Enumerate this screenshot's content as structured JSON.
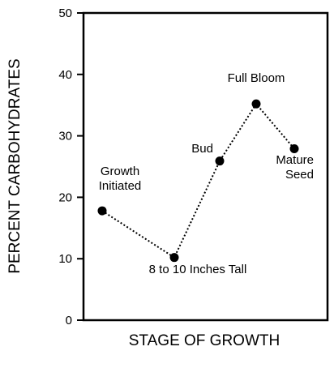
{
  "chart_data": {
    "type": "line",
    "title": "",
    "xlabel": "STAGE OF GROWTH",
    "ylabel": "PERCENT CARBOHYDRATES",
    "ylim": [
      0,
      50
    ],
    "yticks": [
      "0",
      "10",
      "20",
      "30",
      "40",
      "50"
    ],
    "grid": false,
    "legend": "none",
    "line_style": "dotted",
    "colors": {
      "line": "#000000",
      "marker": "#000000",
      "axis": "#000000"
    },
    "series": [
      {
        "points": [
          {
            "stage": "Growth Initiated",
            "label_lines": [
              "Growth",
              "Initiated"
            ],
            "value": 17.8
          },
          {
            "stage": "8 to 10 Inches Tall",
            "label_lines": [
              "8 to 10 Inches Tall"
            ],
            "value": 10.2
          },
          {
            "stage": "Bud",
            "label_lines": [
              "Bud"
            ],
            "value": 25.9
          },
          {
            "stage": "Full Bloom",
            "label_lines": [
              "Full Bloom"
            ],
            "value": 35.2
          },
          {
            "stage": "Mature Seed",
            "label_lines": [
              "Mature",
              "Seed"
            ],
            "value": 27.9
          }
        ]
      }
    ]
  }
}
